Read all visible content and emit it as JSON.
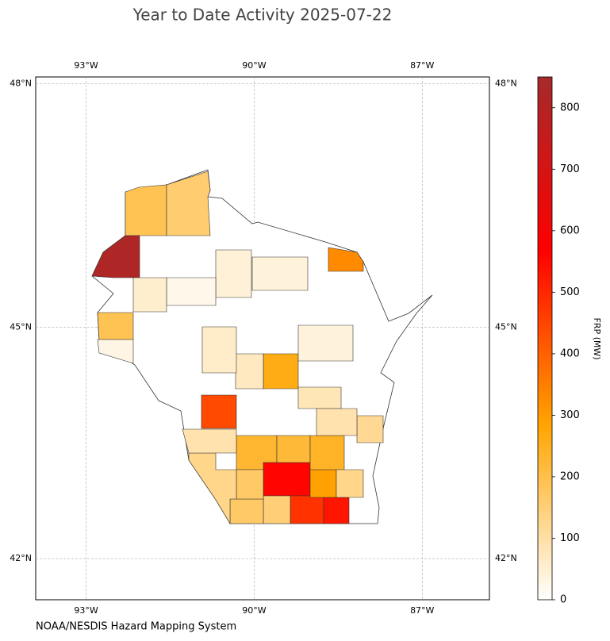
{
  "chart_data": {
    "type": "choropleth",
    "title": "Year to Date Activity 2025-07-22",
    "source": "NOAA/NESDIS Hazard Mapping System",
    "xlim": [
      -93.9,
      -85.8
    ],
    "ylim": [
      41.45,
      48.08
    ],
    "xticks": [
      {
        "value": -93,
        "label": "93°W"
      },
      {
        "value": -90,
        "label": "90°W"
      },
      {
        "value": -87,
        "label": "87°W"
      }
    ],
    "yticks": [
      {
        "value": 42,
        "label": "42°N"
      },
      {
        "value": 45,
        "label": "45°N"
      },
      {
        "value": 48,
        "label": "48°N"
      }
    ],
    "grid": true,
    "values": [
      190,
      160,
      820,
      190,
      330,
      260,
      440,
      560,
      480,
      530,
      290,
      230,
      220,
      240,
      150,
      170,
      170,
      130,
      130,
      120,
      45,
      70,
      60,
      40,
      90,
      30,
      25,
      55,
      80,
      90,
      40
    ],
    "colorbar": {
      "label": "FRP (MW)",
      "lim": [
        0,
        850
      ],
      "ticks": [
        0,
        100,
        200,
        300,
        400,
        500,
        600,
        700,
        800
      ],
      "colors": [
        "#ffffff",
        "#ffa500",
        "#ff0000",
        "#a52a2a"
      ]
    }
  }
}
